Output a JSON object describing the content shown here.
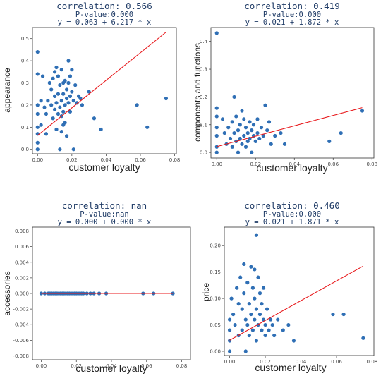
{
  "chart_data": [
    {
      "type": "scatter",
      "title_lines": [
        "correlation: 0.566",
        "P-value:0.000",
        "y = 0.063 + 6.217 * x"
      ],
      "xlabel": "customer loyalty",
      "ylabel": "appearance",
      "xlim": [
        -0.003,
        0.081
      ],
      "ylim": [
        -0.02,
        0.55
      ],
      "xticks": [
        0.0,
        0.02,
        0.04,
        0.06,
        0.08
      ],
      "xtick_labels": [
        "0.00",
        "0.02",
        "0.04",
        "0.06",
        "0.08"
      ],
      "yticks": [
        0.0,
        0.1,
        0.2,
        0.3,
        0.4,
        0.5
      ],
      "ytick_labels": [
        "0.0",
        "0.1",
        "0.2",
        "0.3",
        "0.4",
        "0.5"
      ],
      "fit": {
        "intercept": 0.063,
        "slope": 6.217,
        "x_range": [
          0.0,
          0.075
        ]
      },
      "marker_color": "#2f6fb5",
      "line_color": "#e8191c",
      "grid": false,
      "points": [
        [
          0.0,
          0.44
        ],
        [
          0.0,
          0.34
        ],
        [
          0.0,
          0.2
        ],
        [
          0.0,
          0.16
        ],
        [
          0.0,
          0.1
        ],
        [
          0.0,
          0.07
        ],
        [
          0.0,
          0.03
        ],
        [
          0.0,
          0.0
        ],
        [
          0.002,
          0.11
        ],
        [
          0.002,
          0.22
        ],
        [
          0.003,
          0.33
        ],
        [
          0.004,
          0.19
        ],
        [
          0.005,
          0.16
        ],
        [
          0.005,
          0.07
        ],
        [
          0.006,
          0.22
        ],
        [
          0.007,
          0.3
        ],
        [
          0.008,
          0.2
        ],
        [
          0.008,
          0.27
        ],
        [
          0.009,
          0.14
        ],
        [
          0.009,
          0.32
        ],
        [
          0.01,
          0.35
        ],
        [
          0.01,
          0.24
        ],
        [
          0.01,
          0.18
        ],
        [
          0.011,
          0.37
        ],
        [
          0.011,
          0.21
        ],
        [
          0.011,
          0.09
        ],
        [
          0.012,
          0.25
        ],
        [
          0.012,
          0.16
        ],
        [
          0.012,
          0.33
        ],
        [
          0.013,
          0.29
        ],
        [
          0.013,
          0.19
        ],
        [
          0.013,
          0.0
        ],
        [
          0.014,
          0.36
        ],
        [
          0.014,
          0.22
        ],
        [
          0.014,
          0.15
        ],
        [
          0.014,
          0.08
        ],
        [
          0.015,
          0.3
        ],
        [
          0.015,
          0.25
        ],
        [
          0.015,
          0.17
        ],
        [
          0.015,
          0.11
        ],
        [
          0.016,
          0.31
        ],
        [
          0.016,
          0.2
        ],
        [
          0.016,
          0.12
        ],
        [
          0.017,
          0.27
        ],
        [
          0.017,
          0.23
        ],
        [
          0.017,
          0.06
        ],
        [
          0.018,
          0.4
        ],
        [
          0.018,
          0.3
        ],
        [
          0.018,
          0.21
        ],
        [
          0.019,
          0.33
        ],
        [
          0.019,
          0.24
        ],
        [
          0.019,
          0.17
        ],
        [
          0.02,
          0.36
        ],
        [
          0.02,
          0.26
        ],
        [
          0.021,
          0.22
        ],
        [
          0.021,
          0.0
        ],
        [
          0.022,
          0.29
        ],
        [
          0.023,
          0.21
        ],
        [
          0.024,
          0.24
        ],
        [
          0.025,
          0.23
        ],
        [
          0.026,
          0.2
        ],
        [
          0.03,
          0.26
        ],
        [
          0.033,
          0.14
        ],
        [
          0.037,
          0.09
        ],
        [
          0.058,
          0.2
        ],
        [
          0.064,
          0.1
        ],
        [
          0.075,
          0.23
        ]
      ]
    },
    {
      "type": "scatter",
      "title_lines": [
        "correlation: 0.419",
        "P-value:0.000",
        "y = 0.021 + 1.872 * x"
      ],
      "xlabel": "customer loyalty",
      "ylabel": "components and functions",
      "xlim": [
        -0.003,
        0.081
      ],
      "ylim": [
        -0.02,
        0.45
      ],
      "xticks": [
        0.0,
        0.02,
        0.04,
        0.06,
        0.08
      ],
      "xtick_labels": [
        "0.00",
        "0.02",
        "0.04",
        "0.06",
        "0.08"
      ],
      "yticks": [
        0.0,
        0.1,
        0.2,
        0.3,
        0.4
      ],
      "ytick_labels": [
        "0.0",
        "0.1",
        "0.2",
        "0.3",
        "0.4"
      ],
      "fit": {
        "intercept": 0.021,
        "slope": 1.872,
        "x_range": [
          0.0,
          0.075
        ]
      },
      "marker_color": "#2f6fb5",
      "line_color": "#e8191c",
      "grid": false,
      "points": [
        [
          0.0,
          0.43
        ],
        [
          0.0,
          0.16
        ],
        [
          0.0,
          0.13
        ],
        [
          0.0,
          0.09
        ],
        [
          0.0,
          0.06
        ],
        [
          0.0,
          0.02
        ],
        [
          0.0,
          0.0
        ],
        [
          0.003,
          0.12
        ],
        [
          0.004,
          0.07
        ],
        [
          0.005,
          0.03
        ],
        [
          0.006,
          0.09
        ],
        [
          0.007,
          0.05
        ],
        [
          0.008,
          0.11
        ],
        [
          0.008,
          0.02
        ],
        [
          0.009,
          0.2
        ],
        [
          0.009,
          0.07
        ],
        [
          0.01,
          0.13
        ],
        [
          0.01,
          0.04
        ],
        [
          0.011,
          0.08
        ],
        [
          0.011,
          0.0
        ],
        [
          0.012,
          0.1
        ],
        [
          0.012,
          0.05
        ],
        [
          0.013,
          0.15
        ],
        [
          0.013,
          0.03
        ],
        [
          0.014,
          0.12
        ],
        [
          0.014,
          0.06
        ],
        [
          0.015,
          0.09
        ],
        [
          0.015,
          0.02
        ],
        [
          0.016,
          0.07
        ],
        [
          0.016,
          0.04
        ],
        [
          0.017,
          0.11
        ],
        [
          0.017,
          0.05
        ],
        [
          0.018,
          0.08
        ],
        [
          0.018,
          0.0
        ],
        [
          0.019,
          0.1
        ],
        [
          0.019,
          0.06
        ],
        [
          0.02,
          0.04
        ],
        [
          0.021,
          0.07
        ],
        [
          0.021,
          0.12
        ],
        [
          0.022,
          0.05
        ],
        [
          0.023,
          0.09
        ],
        [
          0.024,
          0.06
        ],
        [
          0.025,
          0.17
        ],
        [
          0.026,
          0.08
        ],
        [
          0.027,
          0.11
        ],
        [
          0.028,
          0.03
        ],
        [
          0.03,
          0.06
        ],
        [
          0.033,
          0.07
        ],
        [
          0.035,
          0.03
        ],
        [
          0.058,
          0.04
        ],
        [
          0.064,
          0.07
        ],
        [
          0.075,
          0.15
        ]
      ]
    },
    {
      "type": "scatter",
      "title_lines": [
        "correlation: nan",
        "P-value:nan",
        "y = 0.000 + 0.000 * x"
      ],
      "xlabel": "customer loyalty",
      "ylabel": "accessories",
      "xlim": [
        -0.005,
        0.085
      ],
      "ylim": [
        -0.0085,
        0.0085
      ],
      "xticks": [
        0.0,
        0.02,
        0.04,
        0.06,
        0.08
      ],
      "xtick_labels": [
        "0.00",
        "0.02",
        "0.04",
        "0.06",
        "0.08"
      ],
      "yticks": [
        -0.008,
        -0.006,
        -0.004,
        -0.002,
        0.0,
        0.002,
        0.004,
        0.006,
        0.008
      ],
      "ytick_labels": [
        "-0.008",
        "-0.006",
        "-0.004",
        "-0.002",
        "0.000",
        "0.002",
        "0.004",
        "0.006",
        "0.008"
      ],
      "fit": {
        "intercept": 0.0,
        "slope": 0.0,
        "x_range": [
          0.0,
          0.075
        ]
      },
      "marker_color": "#2f6fb5",
      "line_color": "#e8191c",
      "grid": false,
      "points": [
        [
          0.0,
          0
        ],
        [
          0.002,
          0
        ],
        [
          0.004,
          0
        ],
        [
          0.005,
          0
        ],
        [
          0.006,
          0
        ],
        [
          0.007,
          0
        ],
        [
          0.008,
          0
        ],
        [
          0.009,
          0
        ],
        [
          0.01,
          0
        ],
        [
          0.011,
          0
        ],
        [
          0.012,
          0
        ],
        [
          0.013,
          0
        ],
        [
          0.014,
          0
        ],
        [
          0.015,
          0
        ],
        [
          0.016,
          0
        ],
        [
          0.017,
          0
        ],
        [
          0.018,
          0
        ],
        [
          0.019,
          0
        ],
        [
          0.02,
          0
        ],
        [
          0.021,
          0
        ],
        [
          0.022,
          0
        ],
        [
          0.023,
          0
        ],
        [
          0.024,
          0
        ],
        [
          0.026,
          0
        ],
        [
          0.028,
          0
        ],
        [
          0.03,
          0
        ],
        [
          0.033,
          0
        ],
        [
          0.037,
          0
        ],
        [
          0.058,
          0
        ],
        [
          0.064,
          0
        ],
        [
          0.075,
          0
        ]
      ]
    },
    {
      "type": "scatter",
      "title_lines": [
        "correlation: 0.460",
        "P-value:0.000",
        "y = 0.021 + 1.871 * x"
      ],
      "xlabel": "customer loyalty",
      "ylabel": "price",
      "xlim": [
        -0.003,
        0.081
      ],
      "ylim": [
        -0.008,
        0.235
      ],
      "xticks": [
        0.0,
        0.02,
        0.04,
        0.06,
        0.08
      ],
      "xtick_labels": [
        "0.00",
        "0.02",
        "0.04",
        "0.06",
        "0.08"
      ],
      "yticks": [
        0.0,
        0.05,
        0.1,
        0.15,
        0.2
      ],
      "ytick_labels": [
        "0.00",
        "0.05",
        "0.10",
        "0.15",
        "0.20"
      ],
      "fit": {
        "intercept": 0.021,
        "slope": 1.871,
        "x_range": [
          0.0,
          0.075
        ]
      },
      "marker_color": "#2f6fb5",
      "line_color": "#e8191c",
      "grid": false,
      "points": [
        [
          0.0,
          0.06
        ],
        [
          0.0,
          0.04
        ],
        [
          0.0,
          0.02
        ],
        [
          0.0,
          0.0
        ],
        [
          0.001,
          0.1
        ],
        [
          0.002,
          0.07
        ],
        [
          0.003,
          0.05
        ],
        [
          0.004,
          0.12
        ],
        [
          0.005,
          0.09
        ],
        [
          0.005,
          0.03
        ],
        [
          0.006,
          0.14
        ],
        [
          0.007,
          0.08
        ],
        [
          0.007,
          0.04
        ],
        [
          0.008,
          0.165
        ],
        [
          0.008,
          0.11
        ],
        [
          0.009,
          0.06
        ],
        [
          0.009,
          0.0
        ],
        [
          0.01,
          0.13
        ],
        [
          0.01,
          0.05
        ],
        [
          0.011,
          0.09
        ],
        [
          0.011,
          0.03
        ],
        [
          0.012,
          0.16
        ],
        [
          0.012,
          0.07
        ],
        [
          0.013,
          0.12
        ],
        [
          0.013,
          0.04
        ],
        [
          0.014,
          0.155
        ],
        [
          0.014,
          0.1
        ],
        [
          0.014,
          0.06
        ],
        [
          0.015,
          0.22
        ],
        [
          0.015,
          0.08
        ],
        [
          0.015,
          0.02
        ],
        [
          0.016,
          0.14
        ],
        [
          0.016,
          0.05
        ],
        [
          0.017,
          0.11
        ],
        [
          0.017,
          0.07
        ],
        [
          0.018,
          0.04
        ],
        [
          0.018,
          0.09
        ],
        [
          0.019,
          0.06
        ],
        [
          0.019,
          0.12
        ],
        [
          0.02,
          0.05
        ],
        [
          0.02,
          0.03
        ],
        [
          0.021,
          0.08
        ],
        [
          0.022,
          0.04
        ],
        [
          0.023,
          0.06
        ],
        [
          0.024,
          0.05
        ],
        [
          0.025,
          0.03
        ],
        [
          0.027,
          0.06
        ],
        [
          0.03,
          0.04
        ],
        [
          0.033,
          0.05
        ],
        [
          0.036,
          0.02
        ],
        [
          0.058,
          0.07
        ],
        [
          0.064,
          0.07
        ],
        [
          0.075,
          0.025
        ]
      ]
    }
  ]
}
